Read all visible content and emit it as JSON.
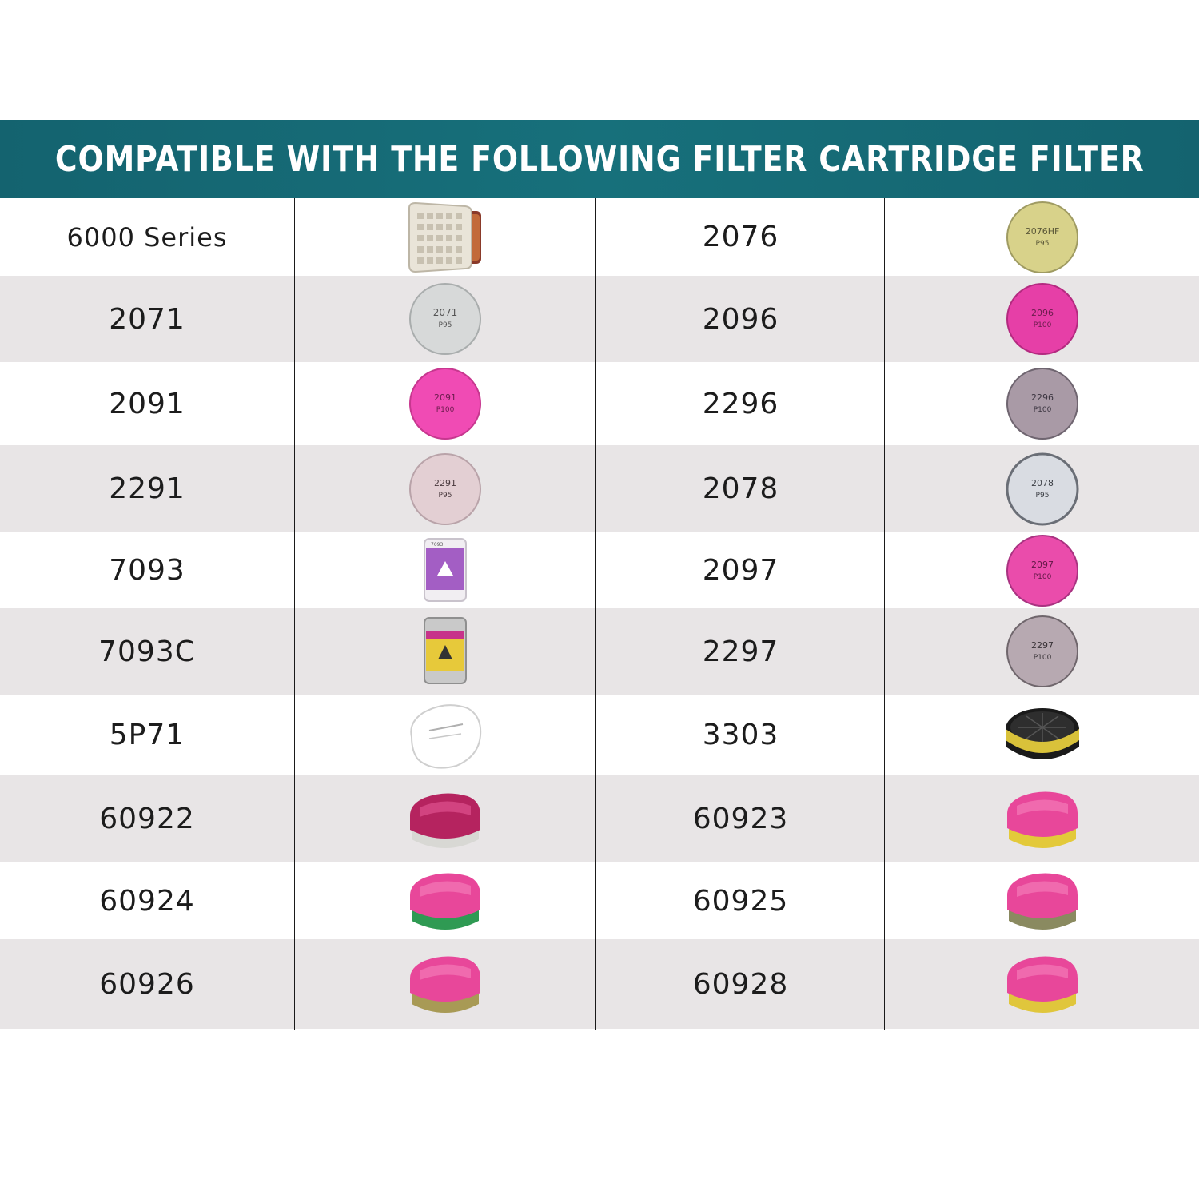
{
  "header": {
    "title": "COMPATIBLE WITH THE FOLLOWING FILTER CARTRIDGE FILTER"
  },
  "rows": [
    {
      "left": {
        "label": "6000 Series",
        "icon": "cartridge-6000-icon"
      },
      "right": {
        "label": "2076",
        "icon": "filter-disc-2076-icon",
        "color": "#d8d28a",
        "print": "2076HF"
      }
    },
    {
      "left": {
        "label": "2071",
        "icon": "filter-disc-2071-icon",
        "color": "#d7d9d9",
        "print": "2071"
      },
      "right": {
        "label": "2096",
        "icon": "filter-disc-2096-icon",
        "color": "#e63fa7",
        "print": "2096"
      }
    },
    {
      "left": {
        "label": "2091",
        "icon": "filter-disc-2091-icon",
        "color": "#f04bb4",
        "print": "2091"
      },
      "right": {
        "label": "2296",
        "icon": "filter-disc-2296-icon",
        "color": "#a99aa6",
        "print": "2296"
      }
    },
    {
      "left": {
        "label": "2291",
        "icon": "filter-disc-2291-icon",
        "color": "#e3cfd3",
        "print": "2291"
      },
      "right": {
        "label": "2078",
        "icon": "filter-disc-2078-icon",
        "color": "#d9dce2",
        "print": "2078"
      }
    },
    {
      "left": {
        "label": "7093",
        "icon": "cartridge-7093-icon"
      },
      "right": {
        "label": "2097",
        "icon": "filter-disc-2097-icon",
        "color": "#ea4cab",
        "print": "2097"
      }
    },
    {
      "left": {
        "label": "7093C",
        "icon": "cartridge-7093c-icon"
      },
      "right": {
        "label": "2297",
        "icon": "filter-disc-2297-icon",
        "color": "#b7a9b1",
        "print": "2297"
      }
    },
    {
      "left": {
        "label": "5P71",
        "icon": "prefilter-5p71-icon"
      },
      "right": {
        "label": "3303",
        "icon": "cartridge-3303-icon"
      }
    },
    {
      "left": {
        "label": "60922",
        "icon": "cartridge-60922-icon",
        "band": "#d8d8d4"
      },
      "right": {
        "label": "60923",
        "icon": "cartridge-60923-icon",
        "band": "#e3c93a"
      }
    },
    {
      "left": {
        "label": "60924",
        "icon": "cartridge-60924-icon",
        "band": "#2f9a53"
      },
      "right": {
        "label": "60925",
        "icon": "cartridge-60925-icon",
        "band": "#8a8a60"
      }
    },
    {
      "left": {
        "label": "60926",
        "icon": "cartridge-60926-icon",
        "band": "#a89a55"
      },
      "right": {
        "label": "60928",
        "icon": "cartridge-60928-icon",
        "band": "#e0c63c"
      }
    }
  ]
}
